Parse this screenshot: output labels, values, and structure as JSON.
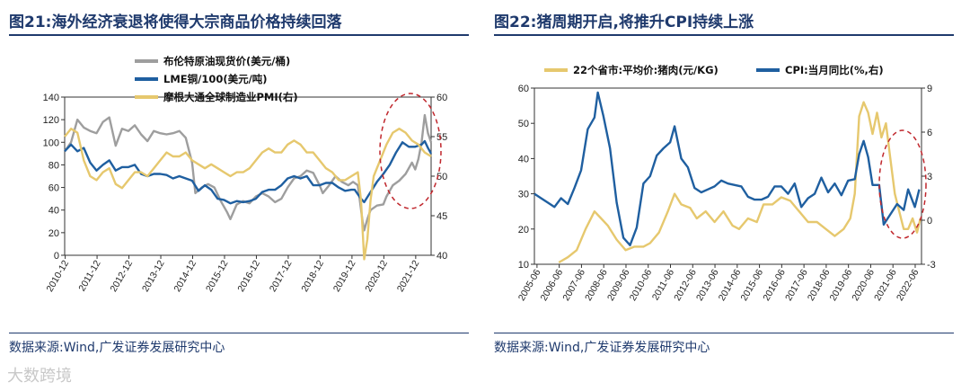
{
  "left": {
    "title": "图21:海外经济衰退将使得大宗商品价格持续回落",
    "source": "数据来源:Wind,广发证券发展研究中心",
    "colors": {
      "oil": "#9e9e9e",
      "copper": "#1f5fa0",
      "pmi": "#e6c86e",
      "annotation": "#c0272d"
    }
  },
  "right": {
    "title": "图22:猪周期开启,将推升CPI持续上涨",
    "source": "数据来源:Wind,广发证券发展研究中心",
    "colors": {
      "pork": "#e6c86e",
      "cpi": "#1f5fa0",
      "annotation": "#c0272d"
    }
  },
  "watermark": "大数跨境",
  "chart_data": [
    {
      "type": "line",
      "title": "海外经济衰退将使得大宗商品价格持续回落",
      "y_left": {
        "range": [
          0,
          140
        ],
        "ticks": [
          "0",
          "20",
          "40",
          "60",
          "80",
          "100",
          "120",
          "140"
        ]
      },
      "y_right": {
        "range": [
          40,
          60
        ],
        "ticks": [
          "40",
          "45",
          "50",
          "55",
          "60"
        ]
      },
      "x_tick_labels": [
        "2010-12",
        "2011-12",
        "2012-12",
        "2013-12",
        "2014-12",
        "2015-12",
        "2016-12",
        "2017-12",
        "2018-12",
        "2019-12",
        "2020-12",
        "2021-12"
      ],
      "x_range": [
        2010.9,
        2022.4
      ],
      "legend": [
        "布伦特原油现货价(美元/桶)",
        "LME铜/100(美元/吨)",
        "摩根大通全球制造业PMI(右)"
      ],
      "series": [
        {
          "name": "布伦特原油现货价(美元/桶)",
          "axis": "left",
          "x": [
            2010.9,
            2011.1,
            2011.3,
            2011.5,
            2011.7,
            2011.9,
            2012.1,
            2012.3,
            2012.5,
            2012.7,
            2012.9,
            2013.1,
            2013.3,
            2013.5,
            2013.7,
            2013.9,
            2014.1,
            2014.3,
            2014.5,
            2014.7,
            2014.9,
            2015.0,
            2015.2,
            2015.4,
            2015.6,
            2015.8,
            2016.0,
            2016.1,
            2016.3,
            2016.5,
            2016.7,
            2016.9,
            2017.1,
            2017.3,
            2017.5,
            2017.7,
            2017.9,
            2018.1,
            2018.3,
            2018.5,
            2018.7,
            2018.9,
            2019.0,
            2019.2,
            2019.4,
            2019.6,
            2019.8,
            2019.95,
            2020.1,
            2020.25,
            2020.3,
            2020.4,
            2020.5,
            2020.7,
            2020.9,
            2021.0,
            2021.2,
            2021.4,
            2021.6,
            2021.8,
            2021.9,
            2022.0,
            2022.1,
            2022.2,
            2022.3,
            2022.4
          ],
          "values": [
            92,
            100,
            120,
            113,
            110,
            108,
            118,
            122,
            97,
            112,
            110,
            115,
            107,
            101,
            110,
            108,
            107,
            108,
            110,
            104,
            82,
            55,
            60,
            63,
            60,
            48,
            38,
            32,
            45,
            48,
            46,
            52,
            55,
            52,
            47,
            50,
            60,
            68,
            70,
            75,
            73,
            62,
            55,
            62,
            70,
            65,
            62,
            65,
            62,
            30,
            22,
            32,
            40,
            44,
            45,
            52,
            62,
            66,
            72,
            82,
            76,
            85,
            100,
            124,
            108,
            100
          ]
        },
        {
          "name": "LME铜/100(美元/吨)",
          "axis": "left",
          "x": [
            2010.9,
            2011.1,
            2011.3,
            2011.5,
            2011.7,
            2011.9,
            2012.1,
            2012.3,
            2012.5,
            2012.7,
            2012.9,
            2013.1,
            2013.3,
            2013.5,
            2013.7,
            2013.9,
            2014.1,
            2014.3,
            2014.5,
            2014.7,
            2014.9,
            2015.1,
            2015.3,
            2015.5,
            2015.7,
            2015.9,
            2016.1,
            2016.3,
            2016.5,
            2016.7,
            2016.9,
            2017.1,
            2017.3,
            2017.5,
            2017.7,
            2017.9,
            2018.1,
            2018.3,
            2018.5,
            2018.7,
            2018.9,
            2019.1,
            2019.3,
            2019.5,
            2019.7,
            2019.9,
            2020.0,
            2020.2,
            2020.3,
            2020.5,
            2020.7,
            2020.9,
            2021.1,
            2021.3,
            2021.5,
            2021.7,
            2021.9,
            2022.1,
            2022.2,
            2022.3,
            2022.4
          ],
          "values": [
            92,
            98,
            92,
            95,
            82,
            75,
            80,
            84,
            75,
            78,
            78,
            80,
            72,
            70,
            72,
            72,
            71,
            68,
            70,
            68,
            66,
            57,
            62,
            58,
            50,
            49,
            46,
            48,
            47,
            48,
            50,
            56,
            58,
            58,
            62,
            68,
            70,
            68,
            70,
            62,
            62,
            64,
            64,
            60,
            57,
            58,
            58,
            50,
            47,
            56,
            65,
            72,
            80,
            91,
            100,
            96,
            96,
            98,
            101,
            95,
            90
          ]
        },
        {
          "name": "摩根大通全球制造业PMI(右)",
          "axis": "right",
          "x": [
            2010.9,
            2011.1,
            2011.3,
            2011.5,
            2011.7,
            2011.9,
            2012.1,
            2012.3,
            2012.5,
            2012.7,
            2012.9,
            2013.1,
            2013.3,
            2013.5,
            2013.7,
            2013.9,
            2014.1,
            2014.3,
            2014.5,
            2014.7,
            2014.9,
            2015.1,
            2015.3,
            2015.5,
            2015.7,
            2015.9,
            2016.1,
            2016.3,
            2016.5,
            2016.7,
            2016.9,
            2017.1,
            2017.3,
            2017.5,
            2017.7,
            2017.9,
            2018.1,
            2018.3,
            2018.5,
            2018.7,
            2018.9,
            2019.1,
            2019.3,
            2019.5,
            2019.7,
            2019.9,
            2020.1,
            2020.2,
            2020.3,
            2020.4,
            2020.5,
            2020.6,
            2020.8,
            2021.0,
            2021.2,
            2021.4,
            2021.6,
            2021.8,
            2022.0,
            2022.2,
            2022.4
          ],
          "values": [
            55,
            56,
            55.5,
            52,
            50,
            49.5,
            50.5,
            51,
            49,
            48.5,
            49.5,
            50.5,
            50.5,
            50,
            51,
            52,
            53,
            52.5,
            52.5,
            53,
            52,
            51.5,
            51,
            51.5,
            51,
            50.5,
            50,
            50.5,
            50.5,
            51,
            52,
            53,
            53.5,
            53,
            53,
            54,
            54.5,
            54,
            53,
            53,
            52,
            51,
            50.5,
            49.5,
            49.5,
            50,
            50.5,
            47,
            39.5,
            42,
            47,
            50,
            52,
            54,
            55.5,
            56,
            55.5,
            54.5,
            54,
            53,
            52.5
          ]
        }
      ],
      "annotation": "dashed ellipse highlighting 2020-12 to 2022"
    },
    {
      "type": "line",
      "title": "猪周期开启,将推升CPI持续上涨",
      "y_left": {
        "range": [
          10,
          60
        ],
        "ticks": [
          "10",
          "20",
          "30",
          "40",
          "50",
          "60"
        ]
      },
      "y_right": {
        "range": [
          -3,
          9
        ],
        "ticks": [
          "-3",
          "0",
          "3",
          "6",
          "9"
        ]
      },
      "x_tick_labels": [
        "2005-06",
        "2006-06",
        "2007-06",
        "2008-06",
        "2009-06",
        "2010-06",
        "2011-06",
        "2012-06",
        "2013-06",
        "2014-06",
        "2015-06",
        "2016-06",
        "2017-06",
        "2018-06",
        "2019-06",
        "2020-06",
        "2021-06",
        "2022-06"
      ],
      "x_range": [
        2005.3,
        2022.7
      ],
      "legend": [
        "22个省市:平均价:猪肉(元/KG)",
        "CPI:当月同比(%,右)"
      ],
      "series": [
        {
          "name": "22个省市:平均价:猪肉(元/KG)",
          "axis": "left",
          "x": [
            2006.4,
            2006.8,
            2007.2,
            2007.6,
            2008.0,
            2008.3,
            2008.6,
            2009.0,
            2009.4,
            2009.8,
            2010.2,
            2010.5,
            2010.9,
            2011.3,
            2011.6,
            2011.9,
            2012.3,
            2012.6,
            2013.0,
            2013.4,
            2013.8,
            2014.2,
            2014.5,
            2014.9,
            2015.3,
            2015.6,
            2016.0,
            2016.4,
            2016.8,
            2017.2,
            2017.6,
            2018.0,
            2018.4,
            2018.8,
            2019.2,
            2019.5,
            2019.7,
            2019.9,
            2020.1,
            2020.3,
            2020.5,
            2020.7,
            2020.9,
            2021.1,
            2021.3,
            2021.5,
            2021.7,
            2021.9,
            2022.1,
            2022.3,
            2022.5,
            2022.65
          ],
          "values": [
            10.5,
            12,
            14,
            20,
            25,
            23,
            21,
            17,
            14,
            15,
            15,
            16,
            19,
            25,
            30,
            27,
            26,
            23,
            25,
            22,
            25,
            21,
            20,
            23,
            22,
            27,
            27,
            29,
            28,
            25,
            22,
            22,
            20,
            18,
            20,
            23,
            30,
            52,
            56,
            53,
            47,
            53,
            46,
            50,
            40,
            30,
            25,
            20,
            20,
            23,
            19,
            23
          ]
        },
        {
          "name": "CPI:当月同比(%,右)",
          "axis": "right",
          "x": [
            2005.3,
            2005.6,
            2005.9,
            2006.2,
            2006.5,
            2006.8,
            2007.1,
            2007.4,
            2007.7,
            2008.0,
            2008.15,
            2008.4,
            2008.7,
            2009.0,
            2009.3,
            2009.6,
            2009.9,
            2010.2,
            2010.5,
            2010.8,
            2011.1,
            2011.4,
            2011.6,
            2011.9,
            2012.2,
            2012.5,
            2012.8,
            2013.1,
            2013.4,
            2013.7,
            2014.0,
            2014.3,
            2014.6,
            2014.9,
            2015.2,
            2015.5,
            2015.8,
            2016.1,
            2016.4,
            2016.7,
            2017.0,
            2017.3,
            2017.6,
            2017.9,
            2018.2,
            2018.5,
            2018.8,
            2019.1,
            2019.4,
            2019.7,
            2019.9,
            2020.1,
            2020.3,
            2020.5,
            2020.8,
            2021.0,
            2021.3,
            2021.6,
            2021.9,
            2022.1,
            2022.4,
            2022.6
          ],
          "values": [
            1.8,
            1.5,
            1.2,
            0.9,
            1.5,
            1.1,
            2.2,
            3.4,
            6.2,
            7.0,
            8.7,
            7.1,
            4.9,
            1.2,
            -1.2,
            -1.7,
            -0.5,
            2.5,
            3.0,
            4.4,
            4.9,
            5.3,
            6.4,
            4.2,
            3.6,
            2.2,
            1.9,
            2.1,
            2.3,
            2.7,
            2.5,
            2.4,
            2.3,
            1.6,
            1.4,
            1.4,
            1.6,
            2.3,
            2.3,
            1.8,
            2.5,
            0.9,
            1.5,
            1.8,
            2.9,
            1.9,
            2.5,
            1.7,
            2.7,
            2.8,
            4.5,
            5.4,
            4.3,
            2.4,
            2.4,
            -0.3,
            0.4,
            1.1,
            0.7,
            2.1,
            0.9,
            2.1
          ]
        }
      ],
      "annotation": "dashed ellipse highlighting 2020-06 to 2022"
    }
  ]
}
